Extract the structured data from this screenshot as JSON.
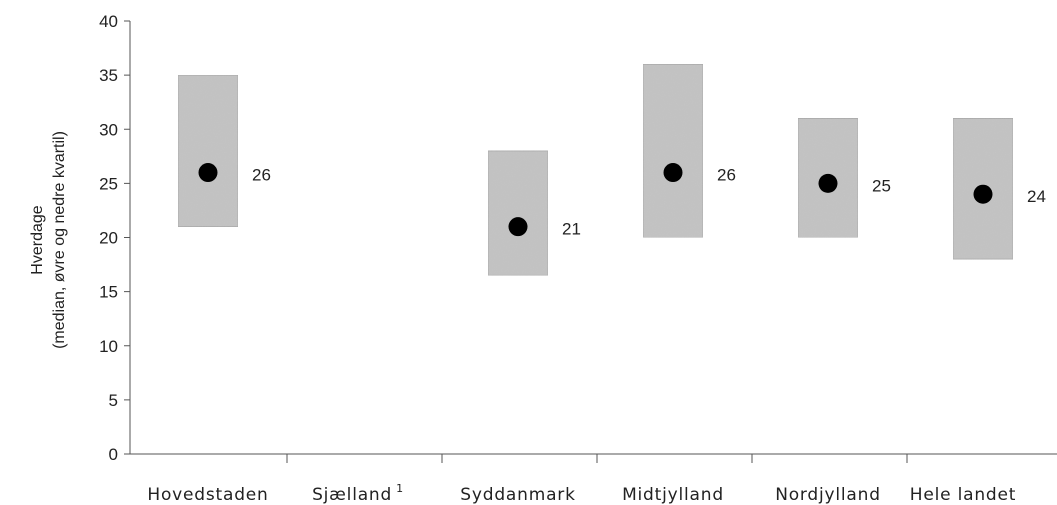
{
  "chart_data": {
    "type": "box",
    "ylabel_line1": "Hverdage",
    "ylabel_line2": "(median, øvre og nedre kvartil)",
    "ylim": [
      0,
      40
    ],
    "yticks": [
      "0",
      "5",
      "10",
      "15",
      "20",
      "25",
      "30",
      "35",
      "40"
    ],
    "categories": [
      {
        "label": "Hovedstaden",
        "sup": ""
      },
      {
        "label": "Sjælland",
        "sup": "1"
      },
      {
        "label": "Syddanmark",
        "sup": ""
      },
      {
        "label": "Midtjylland",
        "sup": ""
      },
      {
        "label": "Nordjylland",
        "sup": ""
      },
      {
        "label": "Hele landet",
        "sup": ""
      }
    ],
    "series": [
      {
        "category": "Hovedstaden",
        "q1": 21,
        "median": 26,
        "q3": 35,
        "label": "26"
      },
      {
        "category": "Sjælland",
        "q1": null,
        "median": null,
        "q3": null,
        "label": ""
      },
      {
        "category": "Syddanmark",
        "q1": 16.5,
        "median": 21,
        "q3": 28,
        "label": "21"
      },
      {
        "category": "Midtjylland",
        "q1": 20,
        "median": 26,
        "q3": 36,
        "label": "26"
      },
      {
        "category": "Nordjylland",
        "q1": 20,
        "median": 25,
        "q3": 31,
        "label": "25"
      },
      {
        "category": "Hele landet",
        "q1": 18,
        "median": 24,
        "q3": 31,
        "label": "24"
      }
    ],
    "grid": false,
    "legend": "none",
    "colors": {
      "box": "#c4c4c4",
      "box_edge": "#a8a8a8",
      "median": "#000000",
      "axis": "#555555"
    }
  }
}
